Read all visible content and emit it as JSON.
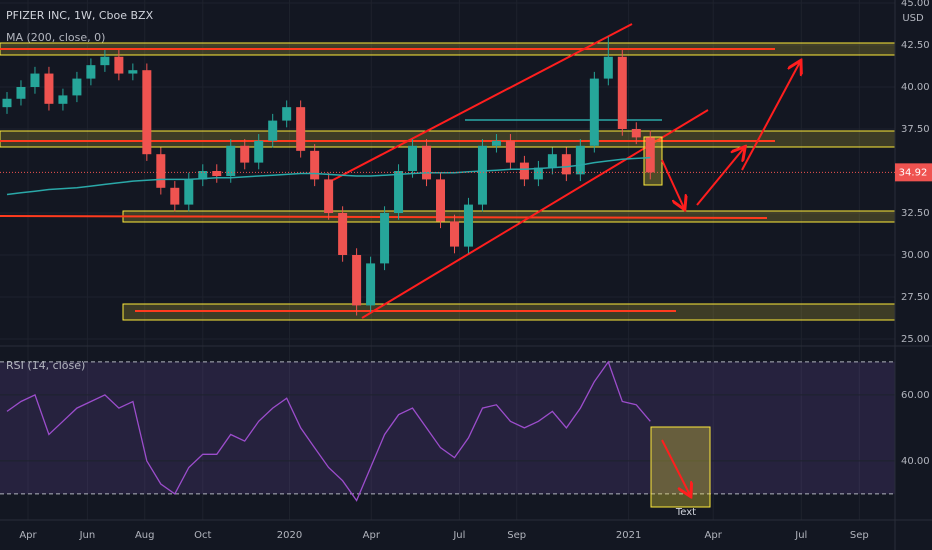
{
  "chart_data": {
    "type": "candlestick",
    "title": "PFIZER INC, 1W, Cboe BZX",
    "indicator": "MA (200, close, 0)",
    "currency": "USD",
    "x": [
      1,
      3,
      5,
      7,
      9,
      11,
      13,
      15,
      17,
      19,
      21,
      23,
      25,
      27,
      29,
      31,
      33,
      35,
      37,
      39,
      41,
      43,
      45,
      47,
      49,
      51,
      53,
      55,
      57,
      59,
      61,
      63,
      65,
      67,
      69,
      71,
      73,
      75,
      77,
      79,
      81,
      83,
      85,
      87,
      89,
      91,
      93
    ],
    "open": [
      38.8,
      39.3,
      40.0,
      40.8,
      39.0,
      39.5,
      40.5,
      41.3,
      41.8,
      40.8,
      41.0,
      36.0,
      34.0,
      33.0,
      34.5,
      35.0,
      34.7,
      36.5,
      35.5,
      36.8,
      38.0,
      38.8,
      36.2,
      34.5,
      32.5,
      30.0,
      27.0,
      29.5,
      32.5,
      35.0,
      36.5,
      34.5,
      32.0,
      30.5,
      33.0,
      36.5,
      36.8,
      35.5,
      34.5,
      35.2,
      36.0,
      34.8,
      36.5,
      40.5,
      41.8,
      37.5,
      37.0
    ],
    "high": [
      39.7,
      40.4,
      41.2,
      41.2,
      39.9,
      40.9,
      41.7,
      42.2,
      42.2,
      41.4,
      41.4,
      36.4,
      34.4,
      34.9,
      35.4,
      35.4,
      36.9,
      36.9,
      37.2,
      38.4,
      39.2,
      39.2,
      36.6,
      34.9,
      32.9,
      30.4,
      29.9,
      32.9,
      35.4,
      36.9,
      36.9,
      34.9,
      32.4,
      33.4,
      36.9,
      37.2,
      37.2,
      35.9,
      35.6,
      36.4,
      36.4,
      36.9,
      40.9,
      43.0,
      42.2,
      37.9,
      37.4
    ],
    "low": [
      38.4,
      38.9,
      39.6,
      38.6,
      38.6,
      39.1,
      40.1,
      40.9,
      40.4,
      40.4,
      35.6,
      33.6,
      32.6,
      32.6,
      34.1,
      34.3,
      34.3,
      35.1,
      35.1,
      36.4,
      37.6,
      35.8,
      34.1,
      32.1,
      29.6,
      26.4,
      26.6,
      29.1,
      32.1,
      34.6,
      34.1,
      31.6,
      30.1,
      30.1,
      32.6,
      36.1,
      35.1,
      34.1,
      34.1,
      34.8,
      34.4,
      34.4,
      36.1,
      40.1,
      37.1,
      36.6,
      34.5
    ],
    "close": [
      39.3,
      40.0,
      40.8,
      39.0,
      39.5,
      40.5,
      41.3,
      41.8,
      40.8,
      41.0,
      36.0,
      34.0,
      33.0,
      34.5,
      35.0,
      34.7,
      36.5,
      35.5,
      36.8,
      38.0,
      38.8,
      36.2,
      34.5,
      32.5,
      30.0,
      27.0,
      29.5,
      32.5,
      35.0,
      36.5,
      34.5,
      32.0,
      30.5,
      33.0,
      36.5,
      36.8,
      35.5,
      34.5,
      35.2,
      36.0,
      34.8,
      36.5,
      40.5,
      41.8,
      37.5,
      37.0,
      34.92
    ],
    "last_label": "34.92",
    "up_color": "#26a69a",
    "down_color": "#ef5350",
    "ma": {
      "color": "#2aa8a8",
      "values": [
        33.6,
        33.7,
        33.8,
        33.9,
        33.95,
        34.0,
        34.1,
        34.2,
        34.3,
        34.4,
        34.45,
        34.5,
        34.5,
        34.5,
        34.55,
        34.6,
        34.6,
        34.65,
        34.7,
        34.75,
        34.8,
        34.85,
        34.85,
        34.8,
        34.75,
        34.7,
        34.7,
        34.75,
        34.8,
        34.85,
        34.9,
        34.9,
        34.9,
        34.95,
        35.0,
        35.05,
        35.1,
        35.1,
        35.15,
        35.2,
        35.25,
        35.35,
        35.5,
        35.6,
        35.7,
        35.75,
        35.8
      ]
    },
    "xlim": [
      0,
      128
    ],
    "ylim": [
      25,
      45
    ],
    "yticks": [
      {
        "value": 45,
        "label": "45.00"
      },
      {
        "value": 42.5,
        "label": "42.50"
      },
      {
        "value": 40,
        "label": "40.00"
      },
      {
        "value": 37.5,
        "label": "37.50"
      },
      {
        "value": 32.5,
        "label": "32.50"
      },
      {
        "value": 30,
        "label": "30.00"
      },
      {
        "value": 27.5,
        "label": "27.50"
      },
      {
        "value": 25,
        "label": "25.00"
      }
    ],
    "xticks": [
      {
        "value": 4,
        "label": "Apr"
      },
      {
        "value": 12.5,
        "label": "Jun"
      },
      {
        "value": 20.7,
        "label": "Aug"
      },
      {
        "value": 29,
        "label": "Oct"
      },
      {
        "value": 41.4,
        "label": "2020"
      },
      {
        "value": 53.1,
        "label": "Apr"
      },
      {
        "value": 65.7,
        "label": "Jul"
      },
      {
        "value": 73.9,
        "label": "Sep"
      },
      {
        "value": 89.9,
        "label": "2021"
      },
      {
        "value": 102,
        "label": "Apr"
      },
      {
        "value": 114.6,
        "label": "Jul"
      },
      {
        "value": 122.9,
        "label": "Sep"
      }
    ],
    "rsi": {
      "name": "RSI (14, close)",
      "color": "#9c4dcc",
      "values": [
        55,
        58,
        60,
        48,
        52,
        56,
        58,
        60,
        56,
        58,
        40,
        33,
        30,
        38,
        42,
        42,
        48,
        46,
        52,
        56,
        59,
        50,
        44,
        38,
        34,
        28,
        38,
        48,
        54,
        56,
        50,
        44,
        41,
        47,
        56,
        57,
        52,
        50,
        52,
        55,
        50,
        56,
        64,
        70,
        58,
        57,
        52
      ],
      "ylim": [
        22.7,
        74.5
      ],
      "yticks": [
        {
          "value": 60,
          "label": "60.00"
        },
        {
          "value": 40,
          "label": "40.00"
        }
      ],
      "bands": [
        30,
        70
      ]
    },
    "annotation": "Text"
  }
}
